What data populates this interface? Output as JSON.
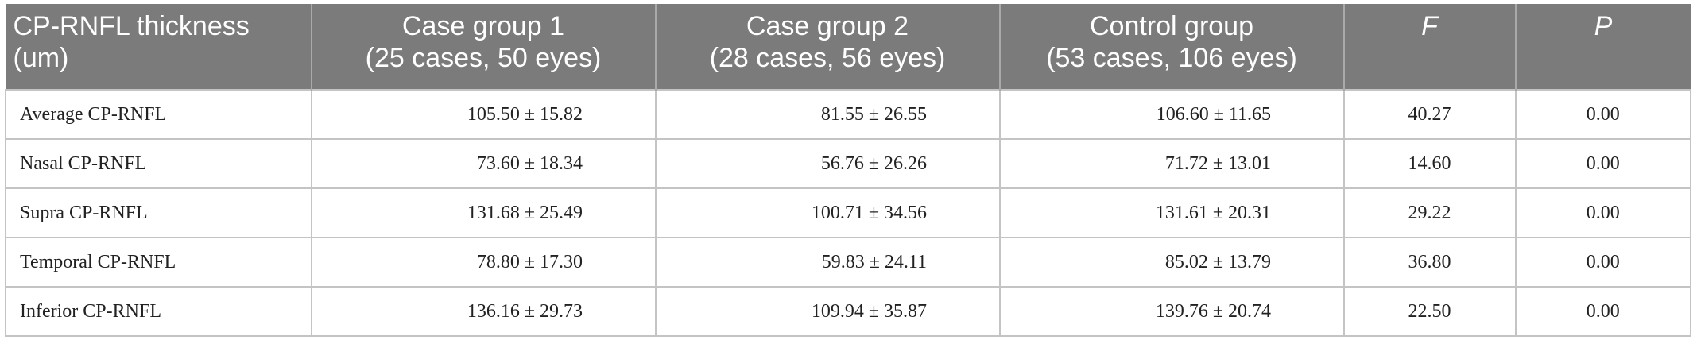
{
  "table": {
    "headers": [
      {
        "line1": "CP-RNFL thickness",
        "line2": "(um)"
      },
      {
        "line1": "Case group 1",
        "line2": "(25 cases, 50 eyes)"
      },
      {
        "line1": "Case group 2",
        "line2": "(28 cases, 56 eyes)"
      },
      {
        "line1": "Control group",
        "line2": "(53 cases, 106 eyes)"
      },
      {
        "line1": "F",
        "line2": ""
      },
      {
        "line1": "P",
        "line2": ""
      }
    ],
    "rows": [
      {
        "label": "Average CP-RNFL",
        "g1": "105.50 ± 15.82",
        "g2": "81.55 ± 26.55",
        "ctrl": "106.60 ± 11.65",
        "f": "40.27",
        "p": "0.00"
      },
      {
        "label": "Nasal CP-RNFL",
        "g1": "73.60 ± 18.34",
        "g2": "56.76 ± 26.26",
        "ctrl": "71.72 ± 13.01",
        "f": "14.60",
        "p": "0.00"
      },
      {
        "label": "Supra CP-RNFL",
        "g1": "131.68 ± 25.49",
        "g2": "100.71 ± 34.56",
        "ctrl": "131.61 ± 20.31",
        "f": "29.22",
        "p": "0.00"
      },
      {
        "label": "Temporal CP-RNFL",
        "g1": "78.80 ± 17.30",
        "g2": "59.83 ± 24.11",
        "ctrl": "85.02 ± 13.79",
        "f": "36.80",
        "p": "0.00"
      },
      {
        "label": "Inferior CP-RNFL",
        "g1": "136.16 ± 29.73",
        "g2": "109.94 ± 35.87",
        "ctrl": "139.76 ± 20.74",
        "f": "22.50",
        "p": "0.00"
      }
    ]
  },
  "colors": {
    "header_bg": "#7b7b7b",
    "header_text": "#ffffff",
    "grid": "#c4c4c4",
    "body_text": "#222222"
  }
}
